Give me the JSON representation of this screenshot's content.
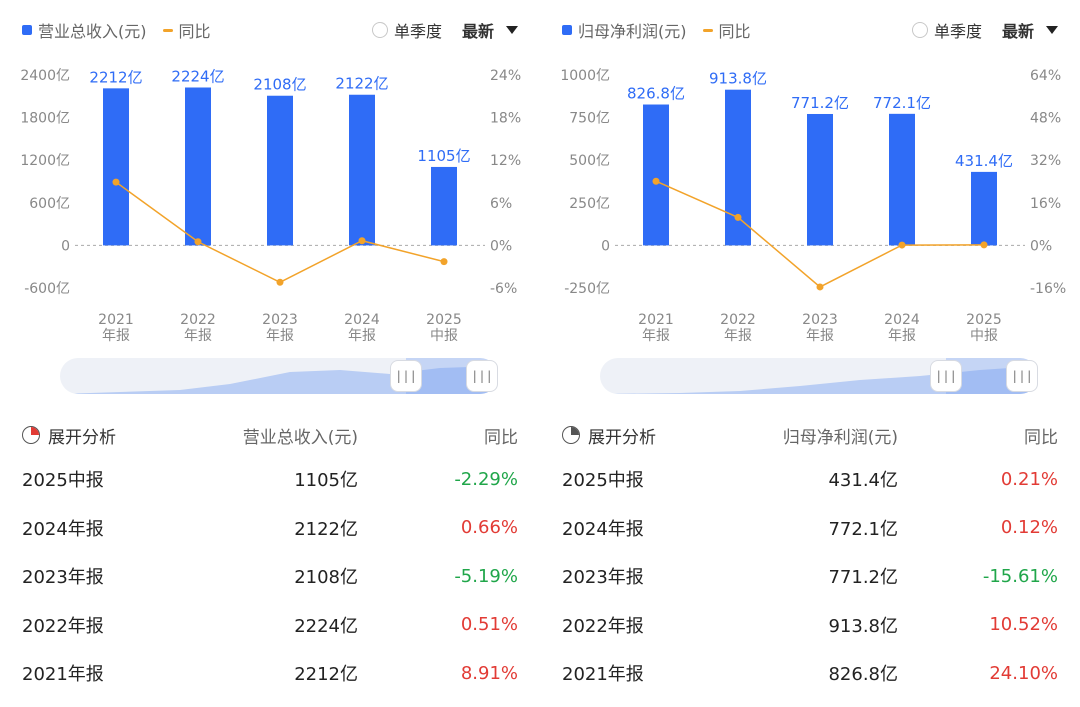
{
  "colors": {
    "bar": "#2f6cf6",
    "line": "#f2a32a",
    "up": "#e23b35",
    "down": "#20a64a"
  },
  "panels": [
    {
      "legend": {
        "bar_label": "营业总收入(元)",
        "line_label": "同比"
      },
      "controls": {
        "quarter_label": "单季度",
        "latest_label": "最新"
      },
      "chart_data": {
        "type": "bar",
        "categories": [
          "2021\n年报",
          "2022\n年报",
          "2023\n年报",
          "2024\n年报",
          "2025\n中报"
        ],
        "series": [
          {
            "name": "营业总收入(元)",
            "values": [
              2212,
              2224,
              2108,
              2122,
              1105
            ],
            "labels": [
              "2212亿",
              "2224亿",
              "2108亿",
              "2122亿",
              "1105亿"
            ]
          },
          {
            "name": "同比",
            "values": [
              8.91,
              0.51,
              -5.19,
              0.66,
              -2.29
            ]
          }
        ],
        "y_left": {
          "ticks": [
            2400,
            1800,
            1200,
            600,
            0,
            -600
          ],
          "tick_labels": [
            "2400亿",
            "1800亿",
            "1200亿",
            "600亿",
            "0",
            "-600亿"
          ],
          "lim": [
            -600,
            2400
          ]
        },
        "y_right": {
          "ticks": [
            24,
            18,
            12,
            6,
            0,
            -6
          ],
          "tick_labels": [
            "24%",
            "18%",
            "12%",
            "6%",
            "0%",
            "-6%"
          ],
          "lim": [
            -6,
            24
          ]
        }
      },
      "slider": {
        "left_handle": "|||",
        "right_handle": "|||"
      },
      "table": {
        "header": {
          "expand_label": "展开分析",
          "col_value": "营业总收入(元)",
          "col_yoy": "同比"
        },
        "rows": [
          {
            "period": "2025中报",
            "value": "1105亿",
            "yoy": "-2.29%"
          },
          {
            "period": "2024年报",
            "value": "2122亿",
            "yoy": "0.66%"
          },
          {
            "period": "2023年报",
            "value": "2108亿",
            "yoy": "-5.19%"
          },
          {
            "period": "2022年报",
            "value": "2224亿",
            "yoy": "0.51%"
          },
          {
            "period": "2021年报",
            "value": "2212亿",
            "yoy": "8.91%"
          }
        ]
      }
    },
    {
      "legend": {
        "bar_label": "归母净利润(元)",
        "line_label": "同比"
      },
      "controls": {
        "quarter_label": "单季度",
        "latest_label": "最新"
      },
      "chart_data": {
        "type": "bar",
        "categories": [
          "2021\n年报",
          "2022\n年报",
          "2023\n年报",
          "2024\n年报",
          "2025\n中报"
        ],
        "series": [
          {
            "name": "归母净利润(元)",
            "values": [
              826.8,
              913.8,
              771.2,
              772.1,
              431.4
            ],
            "labels": [
              "826.8亿",
              "913.8亿",
              "771.2亿",
              "772.1亿",
              "431.4亿"
            ]
          },
          {
            "name": "同比",
            "values": [
              24.1,
              10.52,
              -15.61,
              0.12,
              0.21
            ]
          }
        ],
        "y_left": {
          "ticks": [
            1000,
            750,
            500,
            250,
            0,
            -250
          ],
          "tick_labels": [
            "1000亿",
            "750亿",
            "500亿",
            "250亿",
            "0",
            "-250亿"
          ],
          "lim": [
            -250,
            1000
          ]
        },
        "y_right": {
          "ticks": [
            64,
            48,
            32,
            16,
            0,
            -16
          ],
          "tick_labels": [
            "64%",
            "48%",
            "32%",
            "16%",
            "0%",
            "-16%"
          ],
          "lim": [
            -16,
            64
          ]
        }
      },
      "slider": {
        "left_handle": "|||",
        "right_handle": "|||"
      },
      "table": {
        "header": {
          "expand_label": "展开分析",
          "col_value": "归母净利润(元)",
          "col_yoy": "同比"
        },
        "rows": [
          {
            "period": "2025中报",
            "value": "431.4亿",
            "yoy": "0.21%"
          },
          {
            "period": "2024年报",
            "value": "772.1亿",
            "yoy": "0.12%"
          },
          {
            "period": "2023年报",
            "value": "771.2亿",
            "yoy": "-15.61%"
          },
          {
            "period": "2022年报",
            "value": "913.8亿",
            "yoy": "10.52%"
          },
          {
            "period": "2021年报",
            "value": "826.8亿",
            "yoy": "24.10%"
          }
        ]
      }
    }
  ]
}
